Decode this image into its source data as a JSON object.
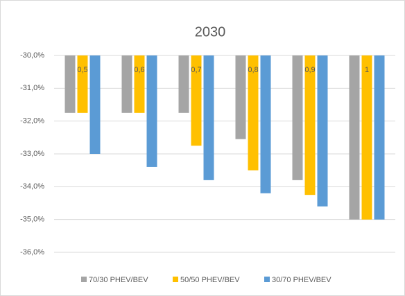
{
  "chart_data": {
    "type": "bar",
    "title": "2030",
    "categories": [
      "0,5",
      "0,6",
      "0,7",
      "0,8",
      "0,9",
      "1"
    ],
    "series": [
      {
        "name": "70/30 PHEV/BEV",
        "color": "#a5a5a5",
        "values": [
          -31.75,
          -31.75,
          -31.75,
          -32.55,
          -33.8,
          -35
        ]
      },
      {
        "name": "50/50 PHEV/BEV",
        "color": "#ffc000",
        "values": [
          -31.75,
          -31.75,
          -32.75,
          -33.5,
          -34.25,
          -35
        ]
      },
      {
        "name": "30/70 PHEV/BEV",
        "color": "#5b9bd5",
        "values": [
          -33.0,
          -33.4,
          -33.8,
          -34.2,
          -34.6,
          -35
        ]
      }
    ],
    "ylim": [
      -36,
      -30
    ],
    "yticks": [
      {
        "value": -30,
        "label": "-30,0%"
      },
      {
        "value": -31,
        "label": "-31,0%"
      },
      {
        "value": -32,
        "label": "-32,0%"
      },
      {
        "value": -33,
        "label": "-33,0%"
      },
      {
        "value": -34,
        "label": "-34,0%"
      },
      {
        "value": -35,
        "label": "-35,0%"
      },
      {
        "value": -36,
        "label": "-36,0%"
      }
    ],
    "grid": true,
    "legend": "bottom"
  }
}
